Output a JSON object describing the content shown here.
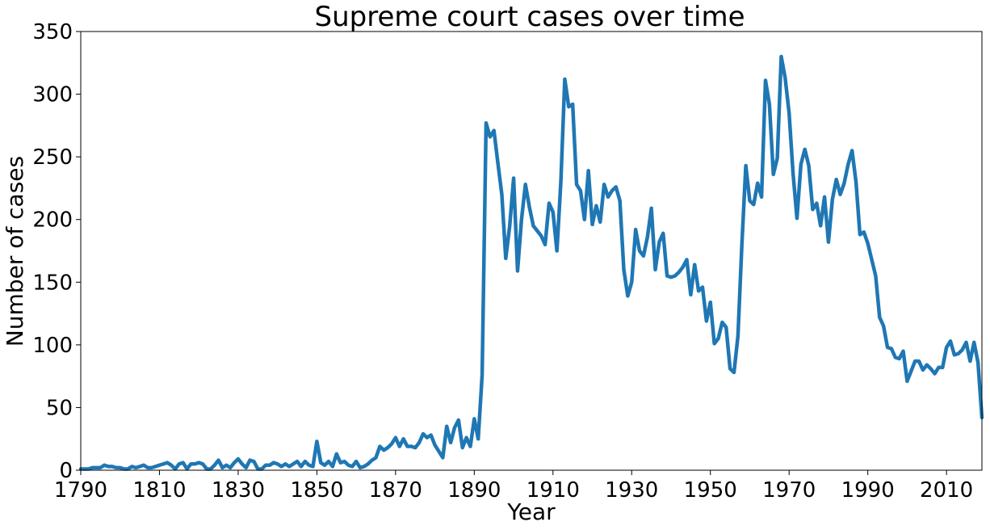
{
  "chart_data": {
    "type": "line",
    "title": "Supreme court cases over time",
    "xlabel": "Year",
    "ylabel": "Number of cases",
    "xlim": [
      1790,
      2019
    ],
    "ylim": [
      0,
      350
    ],
    "xticks": [
      1790,
      1810,
      1830,
      1850,
      1870,
      1890,
      1910,
      1930,
      1950,
      1970,
      1990,
      2010
    ],
    "yticks": [
      0,
      50,
      100,
      150,
      200,
      250,
      300,
      350
    ],
    "grid": false,
    "legend": false,
    "series": [
      {
        "color": "#1f77b4",
        "points": [
          [
            1790,
            1
          ],
          [
            1791,
            1
          ],
          [
            1792,
            1
          ],
          [
            1793,
            2
          ],
          [
            1794,
            2
          ],
          [
            1795,
            2
          ],
          [
            1796,
            4
          ],
          [
            1797,
            3
          ],
          [
            1798,
            3
          ],
          [
            1799,
            2
          ],
          [
            1800,
            2
          ],
          [
            1801,
            1
          ],
          [
            1802,
            1
          ],
          [
            1803,
            3
          ],
          [
            1804,
            2
          ],
          [
            1805,
            3
          ],
          [
            1806,
            4
          ],
          [
            1807,
            2
          ],
          [
            1808,
            2
          ],
          [
            1809,
            3
          ],
          [
            1810,
            4
          ],
          [
            1811,
            5
          ],
          [
            1812,
            6
          ],
          [
            1813,
            4
          ],
          [
            1814,
            1
          ],
          [
            1815,
            5
          ],
          [
            1816,
            6
          ],
          [
            1817,
            1
          ],
          [
            1818,
            5
          ],
          [
            1819,
            5
          ],
          [
            1820,
            6
          ],
          [
            1821,
            5
          ],
          [
            1822,
            1
          ],
          [
            1823,
            1
          ],
          [
            1824,
            4
          ],
          [
            1825,
            8
          ],
          [
            1826,
            2
          ],
          [
            1827,
            4
          ],
          [
            1828,
            2
          ],
          [
            1829,
            6
          ],
          [
            1830,
            9
          ],
          [
            1831,
            5
          ],
          [
            1832,
            2
          ],
          [
            1833,
            8
          ],
          [
            1834,
            7
          ],
          [
            1835,
            1
          ],
          [
            1836,
            1
          ],
          [
            1837,
            4
          ],
          [
            1838,
            4
          ],
          [
            1839,
            6
          ],
          [
            1840,
            5
          ],
          [
            1841,
            3
          ],
          [
            1842,
            5
          ],
          [
            1843,
            3
          ],
          [
            1844,
            5
          ],
          [
            1845,
            7
          ],
          [
            1846,
            3
          ],
          [
            1847,
            7
          ],
          [
            1848,
            4
          ],
          [
            1849,
            3
          ],
          [
            1850,
            23
          ],
          [
            1851,
            6
          ],
          [
            1852,
            4
          ],
          [
            1853,
            7
          ],
          [
            1854,
            3
          ],
          [
            1855,
            13
          ],
          [
            1856,
            6
          ],
          [
            1857,
            7
          ],
          [
            1858,
            4
          ],
          [
            1859,
            3
          ],
          [
            1860,
            7
          ],
          [
            1861,
            2
          ],
          [
            1862,
            3
          ],
          [
            1863,
            5
          ],
          [
            1864,
            8
          ],
          [
            1865,
            10
          ],
          [
            1866,
            19
          ],
          [
            1867,
            16
          ],
          [
            1868,
            18
          ],
          [
            1869,
            21
          ],
          [
            1870,
            26
          ],
          [
            1871,
            19
          ],
          [
            1872,
            25
          ],
          [
            1873,
            19
          ],
          [
            1874,
            19
          ],
          [
            1875,
            18
          ],
          [
            1876,
            22
          ],
          [
            1877,
            29
          ],
          [
            1878,
            26
          ],
          [
            1879,
            28
          ],
          [
            1880,
            20
          ],
          [
            1881,
            15
          ],
          [
            1882,
            10
          ],
          [
            1883,
            35
          ],
          [
            1884,
            22
          ],
          [
            1885,
            34
          ],
          [
            1886,
            40
          ],
          [
            1887,
            18
          ],
          [
            1888,
            26
          ],
          [
            1889,
            19
          ],
          [
            1890,
            41
          ],
          [
            1891,
            25
          ],
          [
            1892,
            76
          ],
          [
            1893,
            277
          ],
          [
            1894,
            266
          ],
          [
            1895,
            271
          ],
          [
            1896,
            245
          ],
          [
            1897,
            220
          ],
          [
            1898,
            169
          ],
          [
            1899,
            195
          ],
          [
            1900,
            233
          ],
          [
            1901,
            159
          ],
          [
            1902,
            200
          ],
          [
            1903,
            228
          ],
          [
            1904,
            210
          ],
          [
            1905,
            195
          ],
          [
            1906,
            191
          ],
          [
            1907,
            187
          ],
          [
            1908,
            180
          ],
          [
            1909,
            213
          ],
          [
            1910,
            206
          ],
          [
            1911,
            175
          ],
          [
            1912,
            230
          ],
          [
            1913,
            312
          ],
          [
            1914,
            290
          ],
          [
            1915,
            292
          ],
          [
            1916,
            228
          ],
          [
            1917,
            223
          ],
          [
            1918,
            200
          ],
          [
            1919,
            239
          ],
          [
            1920,
            196
          ],
          [
            1921,
            211
          ],
          [
            1922,
            198
          ],
          [
            1923,
            228
          ],
          [
            1924,
            218
          ],
          [
            1925,
            223
          ],
          [
            1926,
            226
          ],
          [
            1927,
            215
          ],
          [
            1928,
            160
          ],
          [
            1929,
            139
          ],
          [
            1930,
            150
          ],
          [
            1931,
            192
          ],
          [
            1932,
            175
          ],
          [
            1933,
            171
          ],
          [
            1934,
            186
          ],
          [
            1935,
            209
          ],
          [
            1936,
            160
          ],
          [
            1937,
            182
          ],
          [
            1938,
            189
          ],
          [
            1939,
            155
          ],
          [
            1940,
            154
          ],
          [
            1941,
            155
          ],
          [
            1942,
            158
          ],
          [
            1943,
            162
          ],
          [
            1944,
            168
          ],
          [
            1945,
            140
          ],
          [
            1946,
            164
          ],
          [
            1947,
            143
          ],
          [
            1948,
            146
          ],
          [
            1949,
            119
          ],
          [
            1950,
            134
          ],
          [
            1951,
            101
          ],
          [
            1952,
            105
          ],
          [
            1953,
            118
          ],
          [
            1954,
            114
          ],
          [
            1955,
            81
          ],
          [
            1956,
            78
          ],
          [
            1957,
            107
          ],
          [
            1958,
            180
          ],
          [
            1959,
            243
          ],
          [
            1960,
            215
          ],
          [
            1961,
            212
          ],
          [
            1962,
            229
          ],
          [
            1963,
            218
          ],
          [
            1964,
            311
          ],
          [
            1965,
            292
          ],
          [
            1966,
            236
          ],
          [
            1967,
            249
          ],
          [
            1968,
            330
          ],
          [
            1969,
            313
          ],
          [
            1970,
            285
          ],
          [
            1971,
            237
          ],
          [
            1972,
            201
          ],
          [
            1973,
            244
          ],
          [
            1974,
            256
          ],
          [
            1975,
            243
          ],
          [
            1976,
            208
          ],
          [
            1977,
            213
          ],
          [
            1978,
            195
          ],
          [
            1979,
            218
          ],
          [
            1980,
            182
          ],
          [
            1981,
            216
          ],
          [
            1982,
            232
          ],
          [
            1983,
            220
          ],
          [
            1984,
            229
          ],
          [
            1985,
            244
          ],
          [
            1986,
            255
          ],
          [
            1987,
            230
          ],
          [
            1988,
            188
          ],
          [
            1989,
            190
          ],
          [
            1990,
            181
          ],
          [
            1991,
            168
          ],
          [
            1992,
            155
          ],
          [
            1993,
            122
          ],
          [
            1994,
            115
          ],
          [
            1995,
            98
          ],
          [
            1996,
            97
          ],
          [
            1997,
            90
          ],
          [
            1998,
            89
          ],
          [
            1999,
            95
          ],
          [
            2000,
            71
          ],
          [
            2001,
            79
          ],
          [
            2002,
            87
          ],
          [
            2003,
            87
          ],
          [
            2004,
            80
          ],
          [
            2005,
            84
          ],
          [
            2006,
            81
          ],
          [
            2007,
            77
          ],
          [
            2008,
            82
          ],
          [
            2009,
            82
          ],
          [
            2010,
            98
          ],
          [
            2011,
            103
          ],
          [
            2012,
            92
          ],
          [
            2013,
            93
          ],
          [
            2014,
            96
          ],
          [
            2015,
            102
          ],
          [
            2016,
            87
          ],
          [
            2017,
            102
          ],
          [
            2018,
            86
          ],
          [
            2019,
            42
          ]
        ]
      }
    ]
  }
}
